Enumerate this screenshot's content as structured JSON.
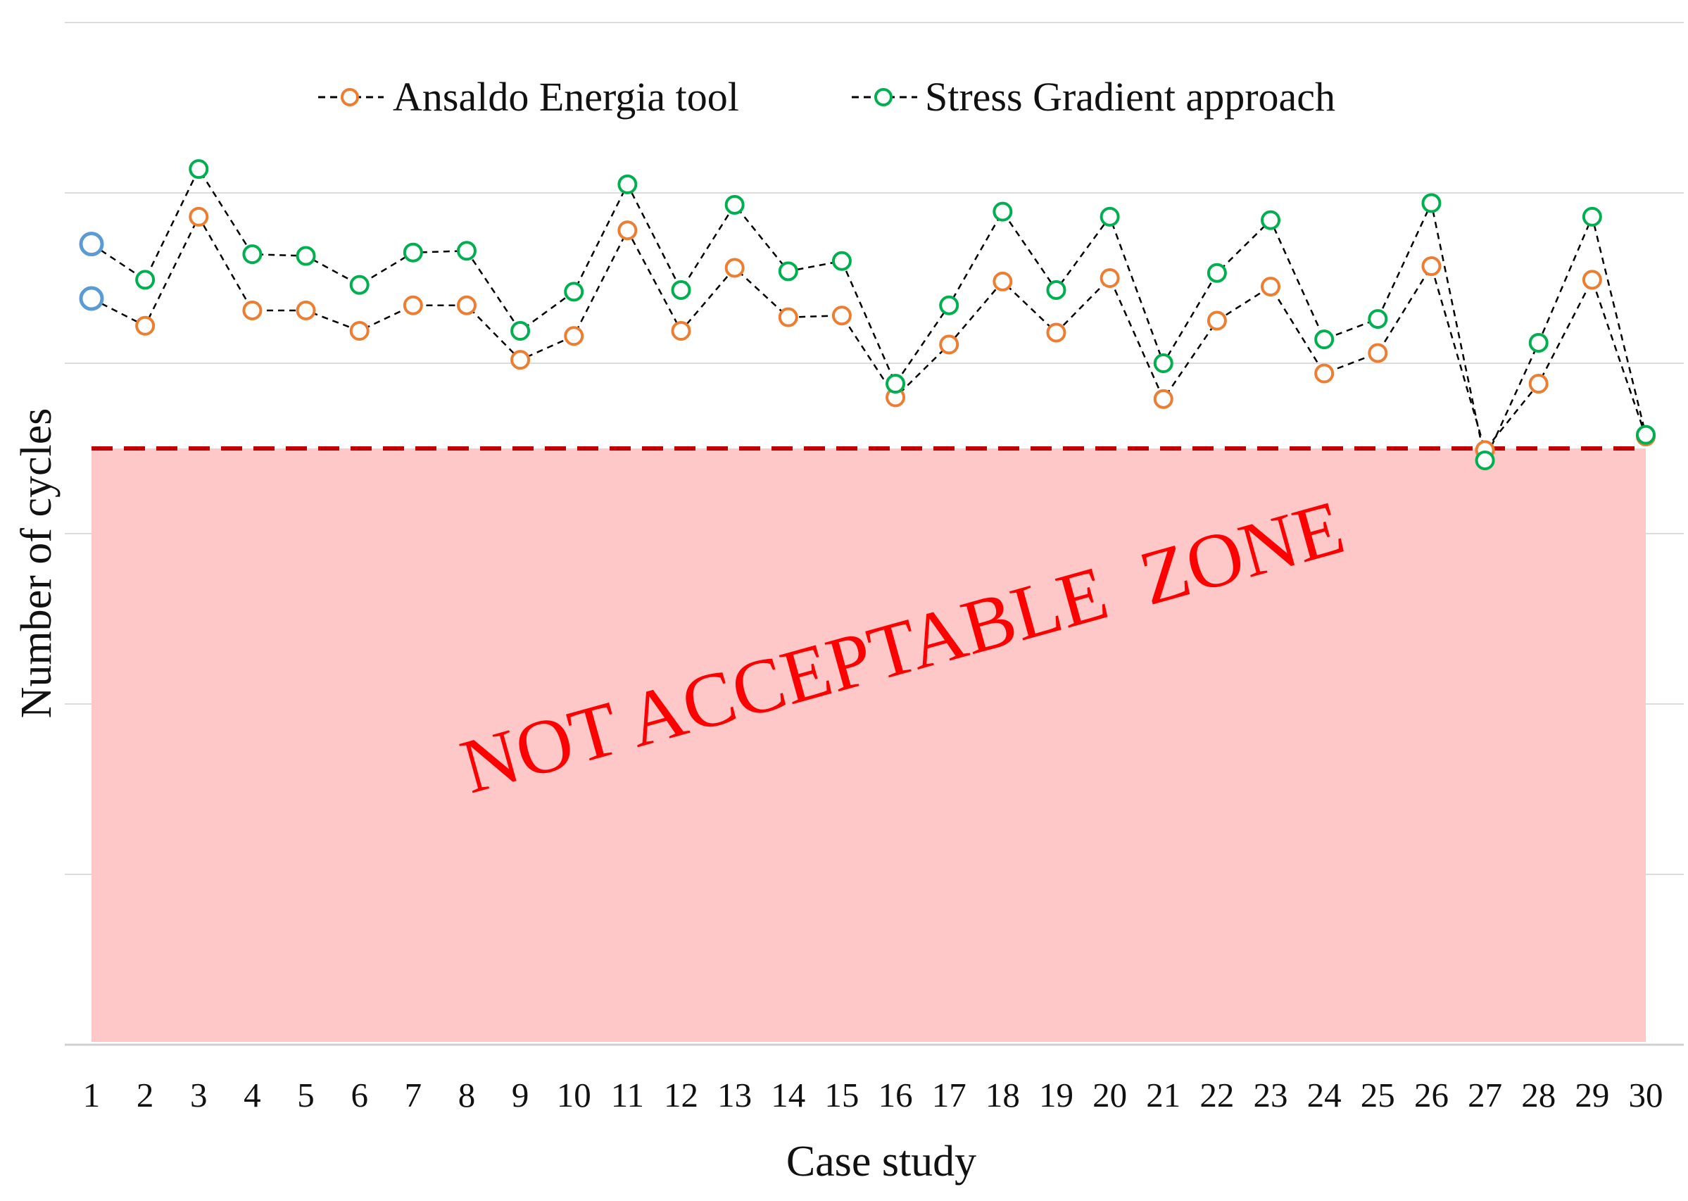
{
  "chart_data": {
    "type": "line",
    "title": "",
    "xlabel": "Case study",
    "ylabel": "Number of cycles",
    "categories": [
      "1",
      "2",
      "3",
      "4",
      "5",
      "6",
      "7",
      "8",
      "9",
      "10",
      "11",
      "12",
      "13",
      "14",
      "15",
      "16",
      "17",
      "18",
      "19",
      "20",
      "21",
      "22",
      "23",
      "24",
      "25",
      "26",
      "27",
      "28",
      "29",
      "30"
    ],
    "ylim": [
      0,
      6
    ],
    "y_ticks_labeled": false,
    "grid": true,
    "legend_position": "top-center",
    "series": [
      {
        "name": "Ansaldo Energia tool",
        "marker": "open-circle",
        "line_style": "dashed",
        "marker_color": "#ED7D31",
        "line_color": "#000000",
        "values": [
          4.38,
          4.22,
          4.86,
          4.31,
          4.31,
          4.19,
          4.34,
          4.34,
          4.02,
          4.16,
          4.78,
          4.19,
          4.56,
          4.27,
          4.28,
          3.8,
          4.11,
          4.48,
          4.18,
          4.5,
          3.79,
          4.25,
          4.45,
          3.94,
          4.06,
          4.57,
          3.49,
          3.88,
          4.49,
          3.57
        ]
      },
      {
        "name": "Stress Gradient approach",
        "marker": "open-circle",
        "line_style": "dashed",
        "marker_color": "#00B050",
        "line_color": "#000000",
        "values": [
          4.7,
          4.49,
          5.14,
          4.64,
          4.63,
          4.46,
          4.65,
          4.66,
          4.19,
          4.42,
          5.05,
          4.43,
          4.93,
          4.54,
          4.6,
          3.88,
          4.34,
          4.89,
          4.43,
          4.86,
          4.0,
          4.53,
          4.84,
          4.14,
          4.26,
          4.94,
          3.43,
          4.12,
          4.86,
          3.58
        ]
      }
    ],
    "threshold": {
      "value": 3.5,
      "color": "#C00000",
      "line_style": "dashed",
      "zone_label": "NOT ACCEPTABLE  ZONE",
      "zone_fill": "#FFC8C8",
      "zone_label_color": "#FF0000"
    },
    "first_point_marker_color": "#5B9BD5"
  }
}
